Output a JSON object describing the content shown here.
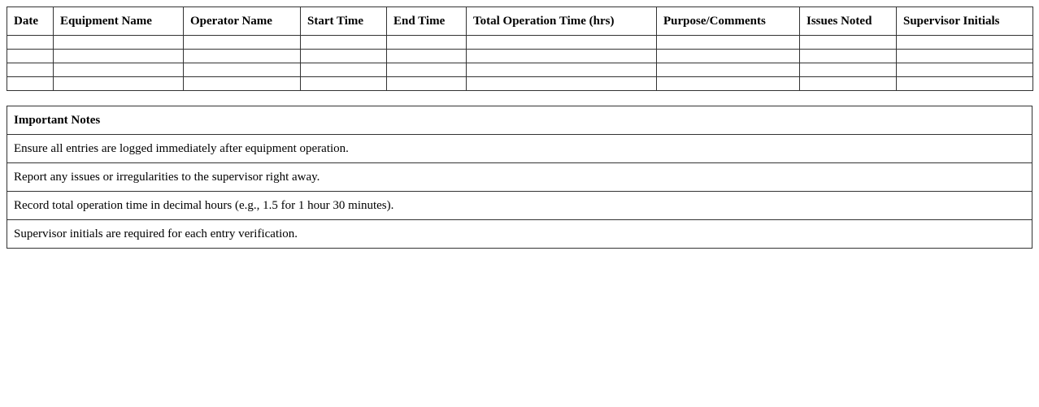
{
  "log_table": {
    "headers": [
      "Date",
      "Equipment Name",
      "Operator Name",
      "Start Time",
      "End Time",
      "Total Operation Time (hrs)",
      "Purpose/Comments",
      "Issues Noted",
      "Supervisor Initials"
    ],
    "row_count": 4
  },
  "notes": {
    "title": "Important Notes",
    "items": [
      "Ensure all entries are logged immediately after equipment operation.",
      "Report any issues or irregularities to the supervisor right away.",
      "Record total operation time in decimal hours (e.g., 1.5 for 1 hour 30 minutes).",
      "Supervisor initials are required for each entry verification."
    ]
  }
}
